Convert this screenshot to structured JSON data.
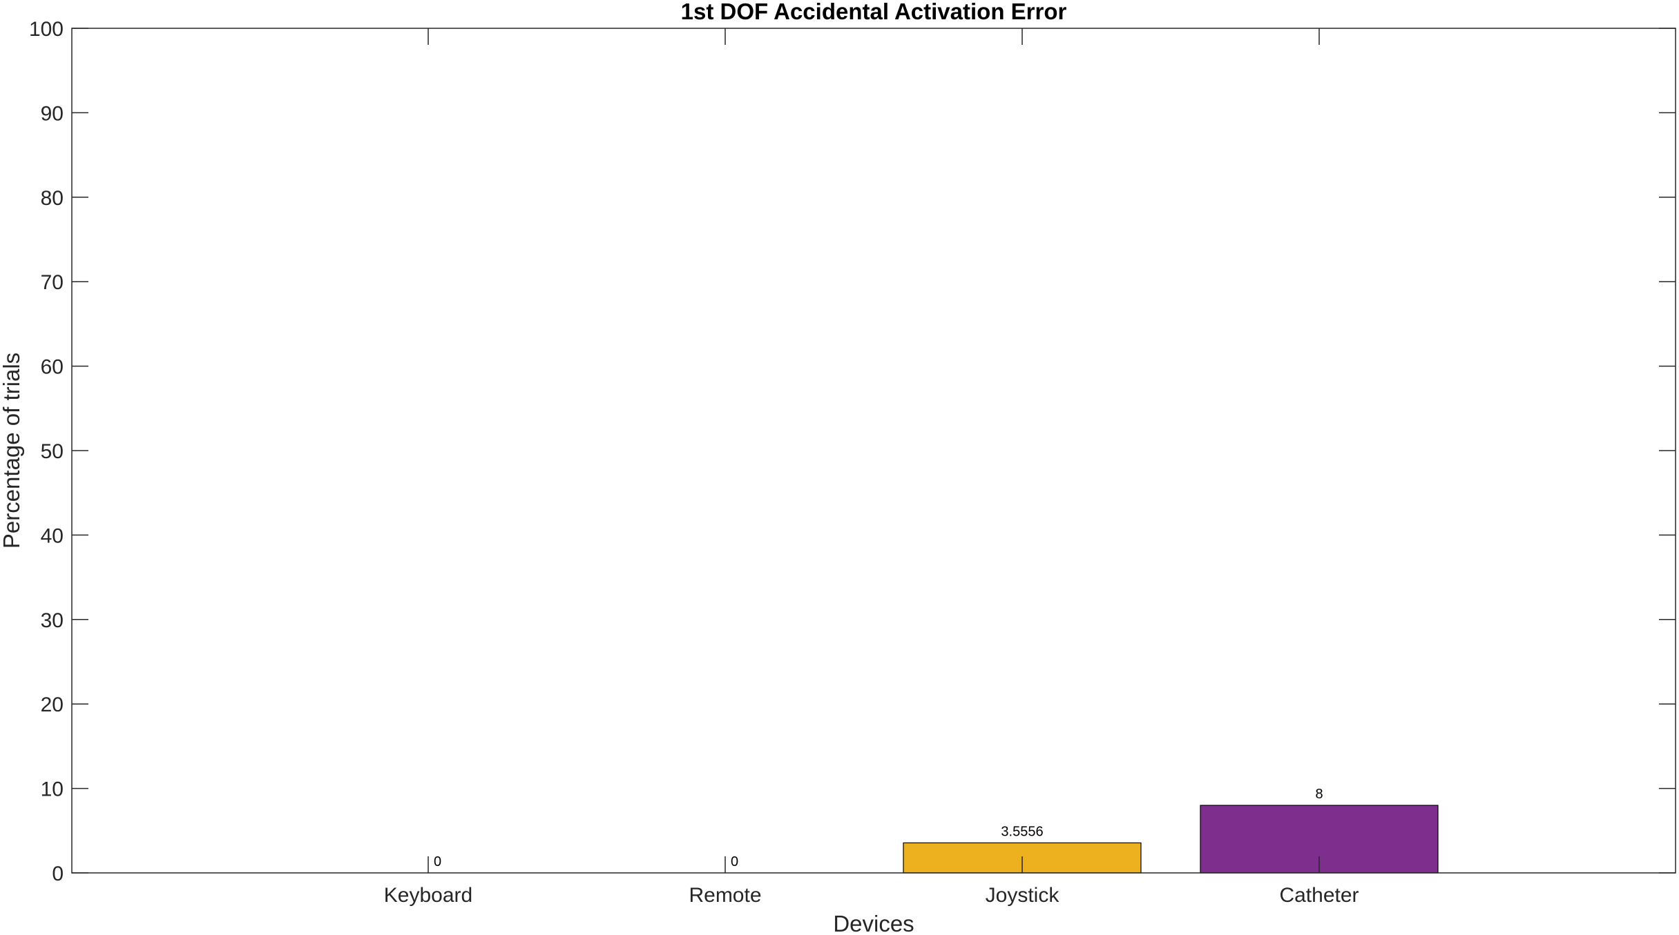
{
  "chart_data": {
    "type": "bar",
    "title": "1st DOF Accidental Activation Error",
    "xlabel": "Devices",
    "ylabel": "Percentage of trials",
    "categories": [
      "Keyboard",
      "Remote",
      "Joystick",
      "Catheter"
    ],
    "values": [
      0,
      0,
      3.5556,
      8
    ],
    "value_labels": [
      "0",
      "0",
      "3.5556",
      "8"
    ],
    "colors": [
      "#0072BD",
      "#D95319",
      "#EDB120",
      "#7E2F8E"
    ],
    "ylim": [
      0,
      100
    ],
    "yticks": [
      0,
      10,
      20,
      30,
      40,
      50,
      60,
      70,
      80,
      90,
      100
    ],
    "xlim": [
      -0.2,
      5.2
    ],
    "grid": false,
    "legend": "none"
  }
}
